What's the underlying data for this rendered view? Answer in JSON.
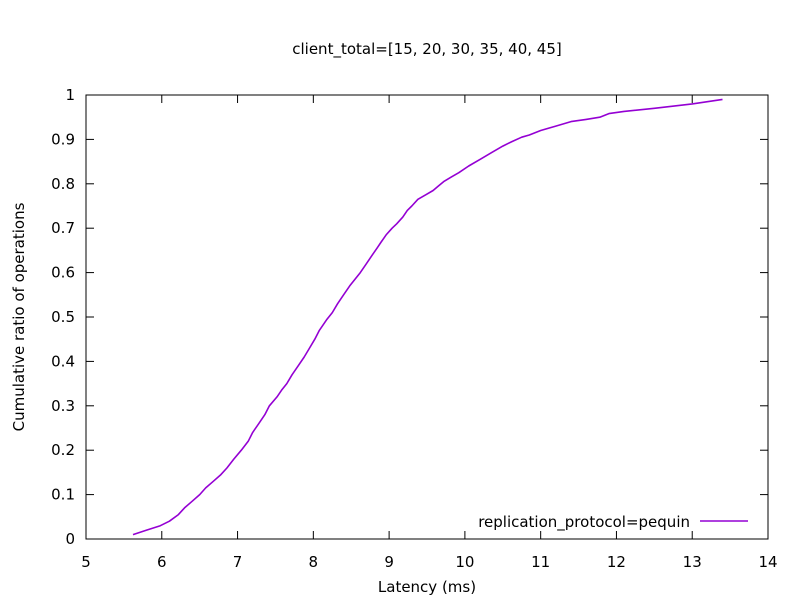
{
  "chart_data": {
    "type": "line",
    "title": "client_total=[15, 20, 30, 35, 40, 45]",
    "xlabel": "Latency (ms)",
    "ylabel": "Cumulative ratio of operations",
    "xlim": [
      5,
      14
    ],
    "ylim": [
      0,
      1
    ],
    "xticks": [
      "5",
      "6",
      "7",
      "8",
      "9",
      "10",
      "11",
      "12",
      "13",
      "14"
    ],
    "yticks": [
      "0",
      "0.1",
      "0.2",
      "0.3",
      "0.4",
      "0.5",
      "0.6",
      "0.7",
      "0.8",
      "0.9",
      "1"
    ],
    "grid": false,
    "legend_position": "bottom-right",
    "series": [
      {
        "name": "replication_protocol=pequin",
        "color": "#9400d3",
        "x": [
          5.62,
          5.8,
          5.98,
          6.1,
          6.22,
          6.3,
          6.4,
          6.5,
          6.58,
          6.68,
          6.78,
          6.86,
          6.95,
          7.05,
          7.14,
          7.2,
          7.28,
          7.36,
          7.42,
          7.52,
          7.58,
          7.65,
          7.72,
          7.8,
          7.88,
          7.95,
          8.02,
          8.08,
          8.12,
          8.18,
          8.25,
          8.32,
          8.4,
          8.48,
          8.55,
          8.62,
          8.7,
          8.78,
          8.84,
          8.9,
          8.96,
          9.04,
          9.1,
          9.18,
          9.24,
          9.3,
          9.38,
          9.48,
          9.58,
          9.65,
          9.72,
          9.82,
          9.92,
          10.05,
          10.2,
          10.35,
          10.5,
          10.62,
          10.75,
          10.85,
          11.0,
          11.2,
          11.4,
          11.6,
          11.78,
          11.9,
          12.1,
          12.5,
          13.0,
          13.4
        ],
        "y": [
          0.01,
          0.02,
          0.03,
          0.04,
          0.055,
          0.07,
          0.085,
          0.1,
          0.115,
          0.13,
          0.145,
          0.16,
          0.18,
          0.2,
          0.22,
          0.24,
          0.26,
          0.28,
          0.3,
          0.32,
          0.335,
          0.35,
          0.37,
          0.39,
          0.41,
          0.43,
          0.45,
          0.47,
          0.48,
          0.495,
          0.51,
          0.53,
          0.55,
          0.57,
          0.585,
          0.6,
          0.62,
          0.64,
          0.655,
          0.67,
          0.685,
          0.7,
          0.71,
          0.725,
          0.74,
          0.75,
          0.765,
          0.775,
          0.785,
          0.795,
          0.805,
          0.815,
          0.825,
          0.84,
          0.855,
          0.87,
          0.885,
          0.895,
          0.905,
          0.91,
          0.92,
          0.93,
          0.94,
          0.945,
          0.95,
          0.958,
          0.963,
          0.97,
          0.98,
          0.99
        ]
      }
    ]
  }
}
